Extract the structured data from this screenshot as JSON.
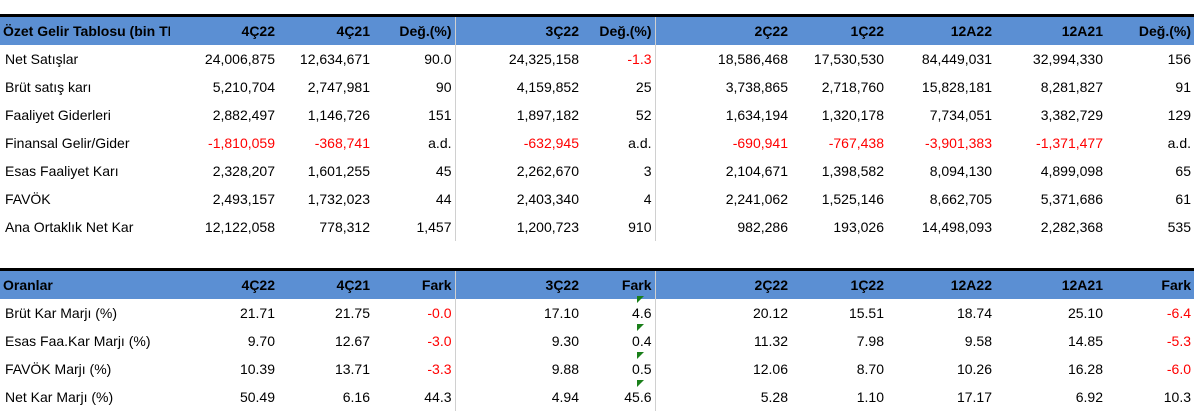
{
  "table1": {
    "headers": [
      "Özet Gelir Tablosu (bin TL)",
      "4Ç22",
      "4Ç21",
      "Değ.(%)",
      "3Ç22",
      "Değ.(%)",
      "2Ç22",
      "1Ç22",
      "12A22",
      "12A21",
      "Değ.(%)"
    ],
    "rows": [
      {
        "label": "Net Satışlar",
        "cells": [
          "24,006,875",
          "12,634,671",
          "90.0",
          "24,325,158",
          "-1.3",
          "18,586,468",
          "17,530,530",
          "84,449,031",
          "32,994,330",
          "156"
        ],
        "neg": [
          false,
          false,
          false,
          false,
          true,
          false,
          false,
          false,
          false,
          false
        ]
      },
      {
        "label": "Brüt satış karı",
        "cells": [
          "5,210,704",
          "2,747,981",
          "90",
          "4,159,852",
          "25",
          "3,738,865",
          "2,718,760",
          "15,828,181",
          "8,281,827",
          "91"
        ],
        "neg": [
          false,
          false,
          false,
          false,
          false,
          false,
          false,
          false,
          false,
          false
        ]
      },
      {
        "label": "Faaliyet Giderleri",
        "cells": [
          "2,882,497",
          "1,146,726",
          "151",
          "1,897,182",
          "52",
          "1,634,194",
          "1,320,178",
          "7,734,051",
          "3,382,729",
          "129"
        ],
        "neg": [
          false,
          false,
          false,
          false,
          false,
          false,
          false,
          false,
          false,
          false
        ]
      },
      {
        "label": "Finansal Gelir/Gider",
        "cells": [
          "-1,810,059",
          "-368,741",
          "a.d.",
          "-632,945",
          "a.d.",
          "-690,941",
          "-767,438",
          "-3,901,383",
          "-1,371,477",
          "a.d."
        ],
        "neg": [
          true,
          true,
          false,
          true,
          false,
          true,
          true,
          true,
          true,
          false
        ]
      },
      {
        "label": "Esas Faaliyet Karı",
        "cells": [
          "2,328,207",
          "1,601,255",
          "45",
          "2,262,670",
          "3",
          "2,104,671",
          "1,398,582",
          "8,094,130",
          "4,899,098",
          "65"
        ],
        "neg": [
          false,
          false,
          false,
          false,
          false,
          false,
          false,
          false,
          false,
          false
        ]
      },
      {
        "label": "FAVÖK",
        "cells": [
          "2,493,157",
          "1,732,023",
          "44",
          "2,403,340",
          "4",
          "2,241,062",
          "1,525,146",
          "8,662,705",
          "5,371,686",
          "61"
        ],
        "neg": [
          false,
          false,
          false,
          false,
          false,
          false,
          false,
          false,
          false,
          false
        ]
      },
      {
        "label": "Ana Ortaklık Net Kar",
        "cells": [
          "12,122,058",
          "778,312",
          "1,457",
          "1,200,723",
          "910",
          "982,286",
          "193,026",
          "14,498,093",
          "2,282,368",
          "535"
        ],
        "neg": [
          false,
          false,
          false,
          false,
          false,
          false,
          false,
          false,
          false,
          false
        ]
      }
    ]
  },
  "table2": {
    "headers": [
      "Oranlar",
      "4Ç22",
      "4Ç21",
      "Fark",
      "3Ç22",
      "Fark",
      "2Ç22",
      "1Ç22",
      "12A22",
      "12A21",
      "Fark"
    ],
    "rows": [
      {
        "label": "Brüt Kar Marjı (%)",
        "cells": [
          "21.71",
          "21.75",
          "-0.0",
          "17.10",
          "4.6",
          "20.12",
          "15.51",
          "18.74",
          "25.10",
          "-6.4"
        ],
        "neg": [
          false,
          false,
          true,
          false,
          false,
          false,
          false,
          false,
          false,
          true
        ]
      },
      {
        "label": "Esas Faa.Kar Marjı (%)",
        "cells": [
          "9.70",
          "12.67",
          "-3.0",
          "9.30",
          "0.4",
          "11.32",
          "7.98",
          "9.58",
          "14.85",
          "-5.3"
        ],
        "neg": [
          false,
          false,
          true,
          false,
          false,
          false,
          false,
          false,
          false,
          true
        ]
      },
      {
        "label": "FAVÖK Marjı (%)",
        "cells": [
          "10.39",
          "13.71",
          "-3.3",
          "9.88",
          "0.5",
          "12.06",
          "8.70",
          "10.26",
          "16.28",
          "-6.0"
        ],
        "neg": [
          false,
          false,
          true,
          false,
          false,
          false,
          false,
          false,
          false,
          true
        ]
      },
      {
        "label": "Net Kar Marjı (%)",
        "cells": [
          "50.49",
          "6.16",
          "44.3",
          "4.94",
          "45.6",
          "5.28",
          "1.10",
          "17.17",
          "6.92",
          "10.3"
        ],
        "neg": [
          false,
          false,
          false,
          false,
          false,
          false,
          false,
          false,
          false,
          false
        ]
      }
    ]
  },
  "colors": {
    "header_bg": "#5b8fd3",
    "negative": "#ff0000",
    "comment_flag": "#1a7f1a"
  }
}
